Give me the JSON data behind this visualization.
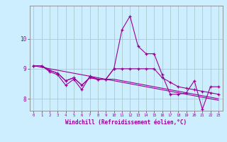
{
  "x": [
    0,
    1,
    2,
    3,
    4,
    5,
    6,
    7,
    8,
    9,
    10,
    11,
    12,
    13,
    14,
    15,
    16,
    17,
    18,
    19,
    20,
    21,
    22,
    23
  ],
  "line1": [
    9.1,
    9.1,
    8.9,
    8.8,
    8.45,
    8.65,
    8.3,
    8.75,
    8.65,
    8.65,
    9.0,
    10.3,
    10.75,
    9.75,
    9.5,
    9.5,
    8.8,
    8.15,
    8.15,
    8.2,
    8.6,
    7.65,
    8.4,
    8.4
  ],
  "line2": [
    9.1,
    9.1,
    8.95,
    8.85,
    8.6,
    8.7,
    8.45,
    8.7,
    8.65,
    8.65,
    9.0,
    9.0,
    9.0,
    9.0,
    9.0,
    9.0,
    8.7,
    8.55,
    8.4,
    8.35,
    8.3,
    8.25,
    8.2,
    8.15
  ],
  "line3": [
    9.1,
    9.1,
    8.95,
    8.85,
    8.6,
    8.7,
    8.45,
    8.7,
    8.65,
    8.65,
    8.65,
    8.6,
    8.55,
    8.5,
    8.45,
    8.4,
    8.35,
    8.3,
    8.25,
    8.2,
    8.15,
    8.1,
    8.05,
    8.0
  ],
  "line4": [
    9.1,
    9.05,
    9.0,
    8.95,
    8.9,
    8.85,
    8.8,
    8.75,
    8.7,
    8.65,
    8.6,
    8.55,
    8.5,
    8.45,
    8.4,
    8.35,
    8.3,
    8.25,
    8.2,
    8.15,
    8.1,
    8.05,
    8.0,
    7.95
  ],
  "color": "#990099",
  "bg_color": "#cceeff",
  "grid_color": "#aacccc",
  "xlabel": "Windchill (Refroidissement éolien,°C)",
  "ylim": [
    7.6,
    11.1
  ],
  "xlim": [
    -0.5,
    23.5
  ],
  "yticks": [
    8,
    9,
    10
  ],
  "xticks": [
    0,
    1,
    2,
    3,
    4,
    5,
    6,
    7,
    8,
    9,
    10,
    11,
    12,
    13,
    14,
    15,
    16,
    17,
    18,
    19,
    20,
    21,
    22,
    23
  ]
}
